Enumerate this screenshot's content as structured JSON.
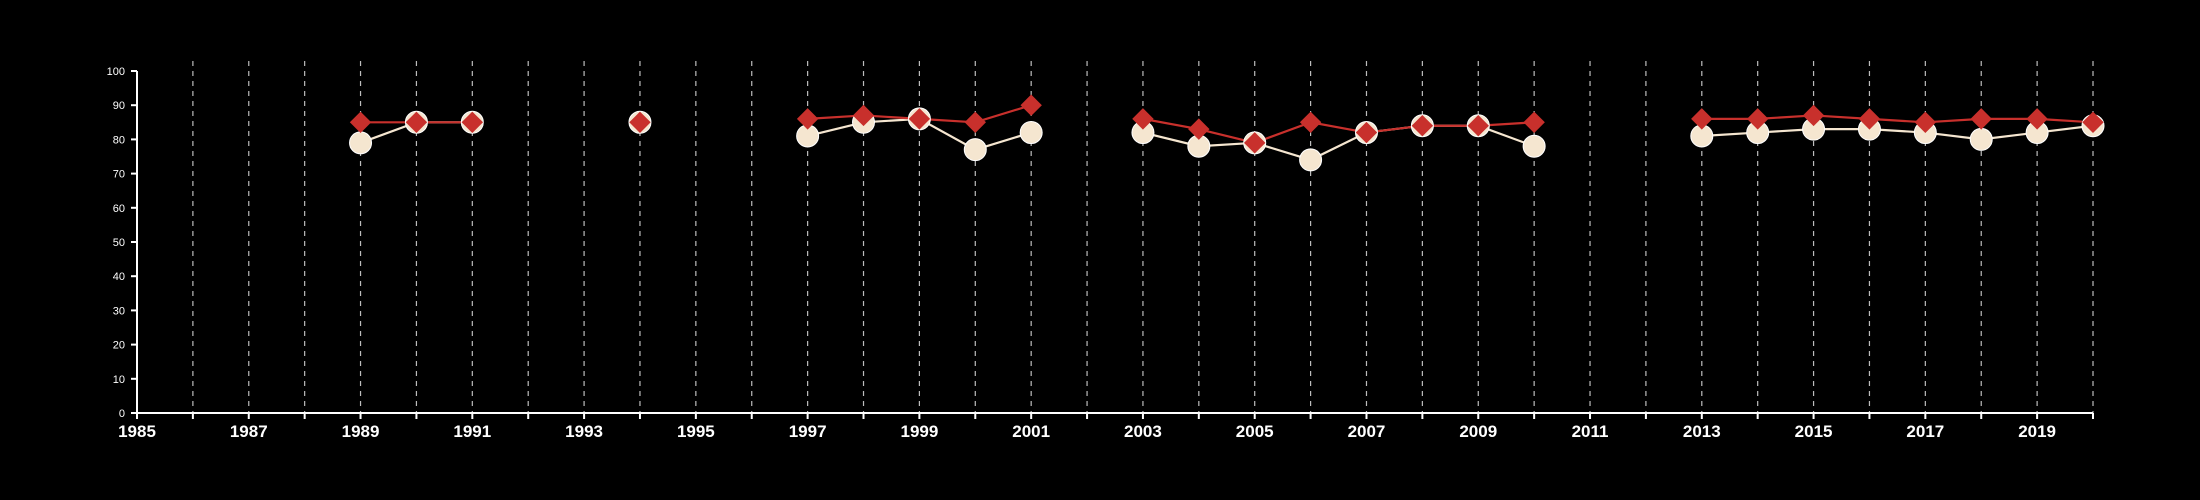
{
  "chart_data": {
    "type": "line",
    "title": "",
    "xlabel": "",
    "ylabel": "",
    "xlim": [
      1985,
      2020
    ],
    "ylim": [
      0,
      100
    ],
    "y_ticks": [
      0,
      10,
      20,
      30,
      40,
      50,
      60,
      70,
      80,
      90,
      100
    ],
    "x_tick_labels": [
      1985,
      1987,
      1989,
      1991,
      1993,
      1995,
      1997,
      1999,
      2001,
      2003,
      2005,
      2007,
      2009,
      2011,
      2013,
      2015,
      2017,
      2019
    ],
    "vertical_grid": "dashed at every year",
    "horizontal_grid": false,
    "legend": "none",
    "series": [
      {
        "marker": "diamond",
        "color": "#c8302c",
        "points": [
          [
            1989,
            85
          ],
          [
            1990,
            85
          ],
          [
            1991,
            85
          ],
          [
            1994,
            85
          ],
          [
            1997,
            86
          ],
          [
            1998,
            87
          ],
          [
            1999,
            86
          ],
          [
            2000,
            85
          ],
          [
            2001,
            90
          ],
          [
            2003,
            86
          ],
          [
            2004,
            83
          ],
          [
            2005,
            79
          ],
          [
            2006,
            85
          ],
          [
            2007,
            82
          ],
          [
            2008,
            84
          ],
          [
            2009,
            84
          ],
          [
            2010,
            85
          ],
          [
            2013,
            86
          ],
          [
            2014,
            86
          ],
          [
            2015,
            87
          ],
          [
            2016,
            86
          ],
          [
            2017,
            85
          ],
          [
            2018,
            86
          ],
          [
            2019,
            86
          ],
          [
            2020,
            85
          ]
        ]
      },
      {
        "marker": "circle",
        "color": "#f5e6d0",
        "points": [
          [
            1989,
            79
          ],
          [
            1990,
            85
          ],
          [
            1991,
            85
          ],
          [
            1994,
            85
          ],
          [
            1997,
            81
          ],
          [
            1998,
            85
          ],
          [
            1999,
            86
          ],
          [
            2000,
            77
          ],
          [
            2001,
            82
          ],
          [
            2003,
            82
          ],
          [
            2004,
            78
          ],
          [
            2005,
            79
          ],
          [
            2006,
            74
          ],
          [
            2007,
            82
          ],
          [
            2008,
            84
          ],
          [
            2009,
            84
          ],
          [
            2010,
            78
          ],
          [
            2013,
            81
          ],
          [
            2014,
            82
          ],
          [
            2015,
            83
          ],
          [
            2016,
            83
          ],
          [
            2017,
            82
          ],
          [
            2018,
            80
          ],
          [
            2019,
            82
          ],
          [
            2020,
            84
          ]
        ]
      }
    ]
  }
}
